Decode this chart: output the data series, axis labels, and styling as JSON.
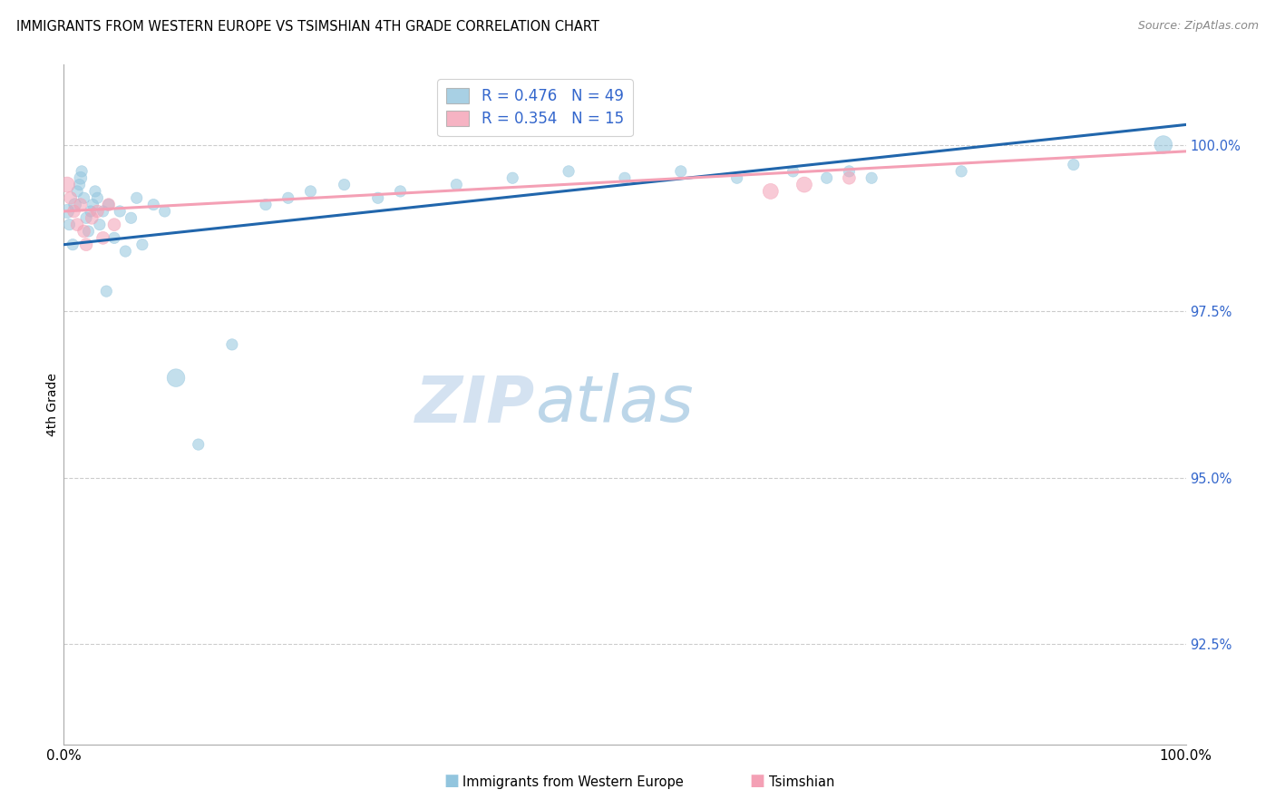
{
  "title": "IMMIGRANTS FROM WESTERN EUROPE VS TSIMSHIAN 4TH GRADE CORRELATION CHART",
  "source": "Source: ZipAtlas.com",
  "ylabel": "4th Grade",
  "ytick_values": [
    92.5,
    95.0,
    97.5,
    100.0
  ],
  "xlim": [
    0.0,
    100.0
  ],
  "ylim": [
    91.0,
    101.2
  ],
  "blue_R": 0.476,
  "blue_N": 49,
  "pink_R": 0.354,
  "pink_N": 15,
  "blue_color": "#92c5de",
  "pink_color": "#f4a0b5",
  "blue_line_color": "#2166ac",
  "pink_line_color": "#d6604d",
  "watermark_zip": "ZIP",
  "watermark_atlas": "atlas",
  "blue_scatter_x": [
    0.3,
    0.5,
    0.8,
    1.0,
    1.2,
    1.4,
    1.5,
    1.6,
    1.8,
    2.0,
    2.2,
    2.4,
    2.6,
    2.8,
    3.0,
    3.2,
    3.5,
    3.8,
    4.0,
    4.5,
    5.0,
    5.5,
    6.0,
    6.5,
    7.0,
    8.0,
    9.0,
    10.0,
    12.0,
    15.0,
    18.0,
    20.0,
    22.0,
    25.0,
    28.0,
    30.0,
    35.0,
    40.0,
    45.0,
    50.0,
    55.0,
    60.0,
    65.0,
    68.0,
    70.0,
    72.0,
    80.0,
    90.0,
    98.0
  ],
  "blue_scatter_y": [
    99.0,
    98.8,
    98.5,
    99.1,
    99.3,
    99.4,
    99.5,
    99.6,
    99.2,
    98.9,
    98.7,
    99.0,
    99.1,
    99.3,
    99.2,
    98.8,
    99.0,
    97.8,
    99.1,
    98.6,
    99.0,
    98.4,
    98.9,
    99.2,
    98.5,
    99.1,
    99.0,
    96.5,
    95.5,
    97.0,
    99.1,
    99.2,
    99.3,
    99.4,
    99.2,
    99.3,
    99.4,
    99.5,
    99.6,
    99.5,
    99.6,
    99.5,
    99.6,
    99.5,
    99.6,
    99.5,
    99.6,
    99.7,
    100.0
  ],
  "blue_scatter_sizes": [
    120,
    80,
    80,
    100,
    80,
    80,
    100,
    80,
    80,
    80,
    80,
    80,
    80,
    80,
    80,
    80,
    80,
    80,
    80,
    80,
    80,
    80,
    80,
    80,
    80,
    80,
    80,
    200,
    80,
    80,
    80,
    80,
    80,
    80,
    80,
    80,
    80,
    80,
    80,
    80,
    80,
    80,
    80,
    80,
    80,
    80,
    80,
    80,
    200
  ],
  "pink_scatter_x": [
    0.3,
    0.6,
    0.9,
    1.2,
    1.5,
    1.8,
    2.0,
    2.5,
    3.0,
    3.5,
    4.0,
    4.5,
    63.0,
    66.0,
    70.0
  ],
  "pink_scatter_y": [
    99.4,
    99.2,
    99.0,
    98.8,
    99.1,
    98.7,
    98.5,
    98.9,
    99.0,
    98.6,
    99.1,
    98.8,
    99.3,
    99.4,
    99.5
  ],
  "pink_scatter_sizes": [
    150,
    100,
    100,
    100,
    100,
    100,
    100,
    100,
    100,
    100,
    100,
    100,
    150,
    150,
    100
  ],
  "blue_line_x0": 0.0,
  "blue_line_y0": 98.5,
  "blue_line_x1": 100.0,
  "blue_line_y1": 100.3,
  "pink_line_x0": 0.0,
  "pink_line_y0": 99.0,
  "pink_line_x1": 100.0,
  "pink_line_y1": 99.9
}
